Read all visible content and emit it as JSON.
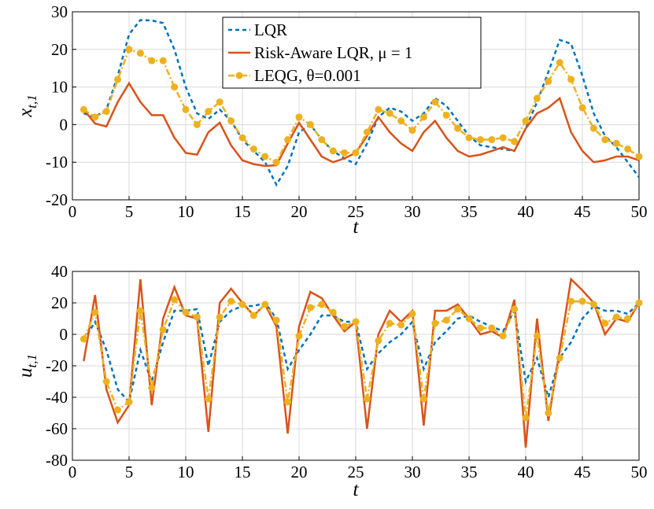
{
  "chart_data": [
    {
      "type": "line",
      "legend": "upper center",
      "grid": true,
      "xlabel": "t",
      "ylabel": {
        "main": "x",
        "sub": "t,1"
      },
      "x": [
        1,
        2,
        3,
        4,
        5,
        6,
        7,
        8,
        9,
        10,
        11,
        12,
        13,
        14,
        15,
        16,
        17,
        18,
        19,
        20,
        21,
        22,
        23,
        24,
        25,
        26,
        27,
        28,
        29,
        30,
        31,
        32,
        33,
        34,
        35,
        36,
        37,
        38,
        39,
        40,
        41,
        42,
        43,
        44,
        45,
        46,
        47,
        48,
        49,
        50
      ],
      "xlim": [
        0,
        50
      ],
      "xticks": [
        0,
        5,
        10,
        15,
        20,
        25,
        30,
        35,
        40,
        45,
        50
      ],
      "ylim": [
        -20,
        30
      ],
      "yticks": [
        -20,
        -10,
        0,
        10,
        20,
        30
      ],
      "series": [
        {
          "name": "LQR",
          "color": "#0072bd",
          "linestyle": "dashed",
          "marker": "none",
          "values": [
            3,
            2,
            4,
            13,
            24,
            27.8,
            27.7,
            27,
            20,
            10,
            3,
            1.5,
            4,
            1,
            -4,
            -7,
            -10,
            -16,
            -11,
            -2,
            0,
            -4,
            -7,
            -9,
            -10.5,
            -5,
            2,
            4.5,
            3.5,
            1,
            3,
            7,
            5,
            1,
            -3,
            -5.5,
            -6,
            -6.5,
            -7,
            -1,
            6,
            14,
            22.5,
            21.5,
            13,
            3,
            -3,
            -6,
            -10,
            -14
          ]
        },
        {
          "name": "Risk-Aware LQR, μ = 1",
          "color": "#d95319",
          "linestyle": "solid",
          "marker": "none",
          "values": [
            4,
            0.3,
            -0.5,
            6,
            11,
            6,
            2.5,
            2.5,
            -3.5,
            -7.5,
            -8,
            -2,
            0.5,
            -5.5,
            -9.5,
            -10.5,
            -11,
            -10.8,
            -5,
            0.5,
            -4,
            -8.5,
            -10,
            -9,
            -7.5,
            -3,
            2,
            -2,
            -5,
            -7,
            -2,
            1,
            -3.5,
            -7,
            -8.5,
            -8,
            -7,
            -6,
            -7,
            -1,
            3,
            4.5,
            7,
            -2,
            -7,
            -10,
            -9.5,
            -8.5,
            -8.5,
            -9.5
          ]
        },
        {
          "name": "LEQG, θ=0.001",
          "color": "#edb120",
          "linestyle": "dashdot",
          "marker": "circle",
          "values": [
            4,
            2,
            3.5,
            12,
            20,
            19,
            17,
            17,
            10,
            4,
            0,
            3.5,
            6,
            1,
            -3.5,
            -6.5,
            -8.5,
            -10,
            -4,
            2,
            0,
            -4,
            -7,
            -7.5,
            -7.5,
            -2,
            4,
            3,
            1,
            -1.5,
            2,
            6,
            2.5,
            -1,
            -3.5,
            -4,
            -4,
            -3.5,
            -4.5,
            1,
            7,
            11.5,
            16.5,
            12,
            4.5,
            -1,
            -4,
            -5,
            -6.5,
            -8.5
          ]
        }
      ]
    },
    {
      "type": "line",
      "grid": true,
      "xlabel": "t",
      "ylabel": {
        "main": "u",
        "sub": "t,1"
      },
      "x": [
        1,
        2,
        3,
        4,
        5,
        6,
        7,
        8,
        9,
        10,
        11,
        12,
        13,
        14,
        15,
        16,
        17,
        18,
        19,
        20,
        21,
        22,
        23,
        24,
        25,
        26,
        27,
        28,
        29,
        30,
        31,
        32,
        33,
        34,
        35,
        36,
        37,
        38,
        39,
        40,
        41,
        42,
        43,
        44,
        45,
        46,
        47,
        48,
        49,
        50
      ],
      "xlim": [
        0,
        50
      ],
      "xticks": [
        0,
        5,
        10,
        15,
        20,
        25,
        30,
        35,
        40,
        45,
        50
      ],
      "ylim": [
        -80,
        40
      ],
      "yticks": [
        -80,
        -60,
        -40,
        -20,
        0,
        20,
        40
      ],
      "series": [
        {
          "color": "#0072bd",
          "linestyle": "dashed",
          "marker": "none",
          "values": [
            -4,
            8,
            -10,
            -35,
            -43,
            -10,
            -30,
            -5,
            15,
            15,
            16,
            -20,
            8,
            15,
            18,
            18,
            20,
            10,
            -22,
            -10,
            0,
            12,
            12,
            8,
            8,
            -22,
            -12,
            -5,
            0,
            8,
            -22,
            -5,
            2,
            10,
            12,
            8,
            5,
            2,
            15,
            -30,
            -15,
            -40,
            -15,
            -5,
            10,
            18,
            15,
            15,
            13,
            20
          ]
        },
        {
          "color": "#d95319",
          "linestyle": "solid",
          "marker": "none",
          "values": [
            -17,
            25,
            -35,
            -56,
            -45,
            35,
            -45,
            10,
            30,
            12,
            10,
            -62,
            20,
            29,
            20,
            12,
            19,
            5,
            -63,
            5,
            27,
            23,
            12,
            2,
            8,
            -60,
            0,
            15,
            8,
            15,
            -58,
            15,
            15,
            19,
            10,
            0,
            2,
            -2,
            22,
            -72,
            10,
            -55,
            -10,
            35,
            28,
            20,
            0,
            10,
            8,
            20
          ]
        },
        {
          "color": "#edb120",
          "linestyle": "dashdot",
          "marker": "circle",
          "values": [
            -3,
            14,
            -30,
            -48,
            -43,
            15,
            -34,
            3,
            22,
            14,
            11,
            -41,
            11,
            21,
            19,
            12,
            19,
            9,
            -43,
            -1,
            17,
            19,
            14,
            5,
            8,
            -41,
            -4,
            7,
            6,
            13,
            -41,
            7,
            9,
            16,
            10,
            4,
            4,
            -1,
            16,
            -53,
            -1,
            -50,
            -15,
            21,
            21,
            19,
            7,
            11,
            10,
            20
          ]
        }
      ]
    }
  ]
}
